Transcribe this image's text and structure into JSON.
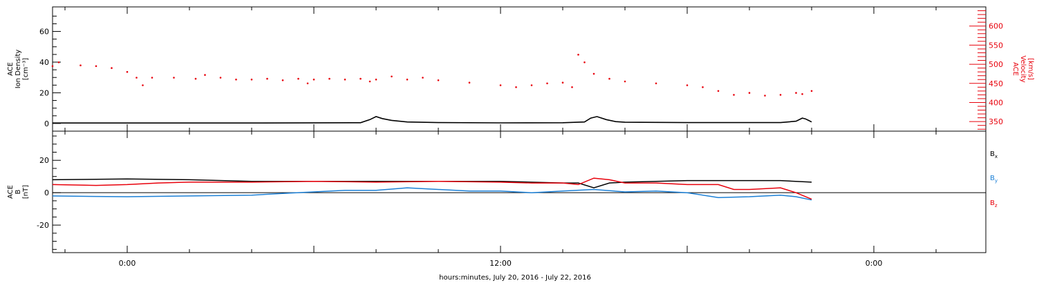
{
  "colors": {
    "density": "#000000",
    "velocity": "#e8000b",
    "bx": "#000000",
    "by": "#1a7fd6",
    "bz": "#e8000b"
  },
  "chart_data": [
    {
      "type": "scatter",
      "panel": "top",
      "ylabel_lines": [
        "ACE",
        "Ion Density",
        "[cm⁻³]"
      ],
      "y2label_lines": [
        "ACE",
        "Velocity",
        "[km/s]"
      ],
      "xlabel": "hours:minutes, July 20, 2016 - July 22, 2016",
      "x_axis_hours_from_jul20_midnight": [
        -2.4,
        27.6
      ],
      "x_tick_labels": [
        {
          "hour": 0,
          "label": "0:00"
        },
        {
          "hour": 12,
          "label": "12:00"
        },
        {
          "hour": 24,
          "label": "0:00"
        }
      ],
      "ylim": [
        -5,
        76
      ],
      "y_ticks": [
        0,
        20,
        40,
        60
      ],
      "y2lim": [
        325,
        650
      ],
      "y2_ticks": [
        350,
        400,
        450,
        500,
        550,
        600
      ],
      "series": [
        {
          "name": "",
          "axis": "left",
          "style": "line",
          "x": [
            -2.4,
            0,
            4,
            7.5,
            7.8,
            8.0,
            8.2,
            8.5,
            9,
            10,
            12,
            14,
            14.7,
            14.9,
            15.1,
            15.4,
            15.7,
            16,
            18,
            20,
            21,
            21.5,
            21.7,
            21.8,
            21.9,
            22.0
          ],
          "y": [
            0.3,
            0.3,
            0.3,
            0.5,
            2.5,
            4.5,
            3.2,
            2.0,
            1.0,
            0.6,
            0.4,
            0.5,
            1.0,
            3.5,
            4.5,
            2.5,
            1.2,
            0.8,
            0.6,
            0.6,
            0.6,
            1.5,
            3.5,
            3.0,
            2.0,
            1.0
          ]
        },
        {
          "name": "",
          "axis": "right",
          "style": "dots",
          "x": [
            -2.4,
            -2.2,
            -1.5,
            -1.0,
            -0.5,
            0.0,
            0.3,
            0.5,
            0.8,
            1.5,
            2.2,
            2.5,
            3.0,
            3.5,
            4.0,
            4.5,
            5.0,
            5.5,
            5.8,
            6.0,
            6.5,
            7.0,
            7.5,
            7.8,
            8.0,
            8.5,
            9.0,
            9.5,
            10.0,
            11.0,
            12.0,
            12.5,
            13.0,
            13.5,
            14.0,
            14.3,
            14.5,
            14.7,
            15.0,
            15.5,
            16.0,
            17.0,
            18.0,
            18.5,
            19.0,
            19.5,
            20.0,
            20.5,
            21.0,
            21.5,
            21.7,
            22.0
          ],
          "y": [
            495,
            505,
            497,
            495,
            490,
            480,
            465,
            445,
            465,
            465,
            462,
            472,
            465,
            460,
            460,
            462,
            458,
            462,
            450,
            460,
            462,
            460,
            462,
            455,
            460,
            468,
            460,
            465,
            458,
            452,
            445,
            440,
            445,
            450,
            452,
            440,
            525,
            505,
            475,
            462,
            455,
            450,
            445,
            440,
            430,
            420,
            425,
            418,
            420,
            425,
            422,
            430
          ]
        }
      ]
    },
    {
      "type": "scatter",
      "panel": "bottom",
      "ylabel_lines": [
        "ACE",
        "B",
        "[nT]"
      ],
      "x_axis_hours_from_jul20_midnight": [
        -2.4,
        27.6
      ],
      "ylim": [
        -37,
        38
      ],
      "y_ticks": [
        -20,
        0,
        20
      ],
      "zero_line": true,
      "legend": [
        {
          "main": "B",
          "sub": "x",
          "color": "#000000"
        },
        {
          "main": "B",
          "sub": "y",
          "color": "#1a7fd6"
        },
        {
          "main": "B",
          "sub": "z",
          "color": "#e8000b"
        }
      ],
      "series": [
        {
          "name": "Bx",
          "x": [
            -2.4,
            0,
            2,
            4,
            6,
            8,
            10,
            12,
            14,
            14.5,
            15.0,
            15.5,
            16,
            18,
            20,
            21,
            22.0
          ],
          "y": [
            8,
            8.5,
            8,
            7,
            7,
            7,
            7,
            7,
            6,
            6,
            3,
            6,
            6.5,
            7.5,
            7.5,
            7.5,
            6.5
          ]
        },
        {
          "name": "By",
          "x": [
            -2.4,
            -1,
            0,
            2,
            4,
            5,
            6,
            7,
            8,
            9,
            10,
            11,
            12,
            13,
            14,
            15,
            16,
            17,
            18,
            19,
            20,
            21,
            21.5,
            22.0
          ],
          "y": [
            -2,
            -2.3,
            -2.5,
            -2,
            -1.5,
            -0.5,
            0.5,
            1.5,
            1.5,
            3,
            2,
            1,
            1,
            0,
            1,
            2,
            0.5,
            1,
            0,
            -3,
            -2.5,
            -1.5,
            -2.5,
            -4.5
          ]
        },
        {
          "name": "Bz",
          "x": [
            -2.4,
            -1,
            0,
            1,
            2,
            4,
            6,
            8,
            10,
            12,
            13,
            14,
            14.5,
            15.0,
            15.5,
            16,
            17,
            18,
            19,
            19.5,
            20,
            21,
            21.5,
            22.0
          ],
          "y": [
            5,
            4.5,
            5,
            6,
            6.5,
            6.5,
            7,
            6.5,
            7,
            6.5,
            6,
            6,
            5,
            9,
            8,
            6,
            6,
            5,
            5,
            2,
            2,
            3,
            0,
            -4
          ]
        }
      ]
    }
  ]
}
